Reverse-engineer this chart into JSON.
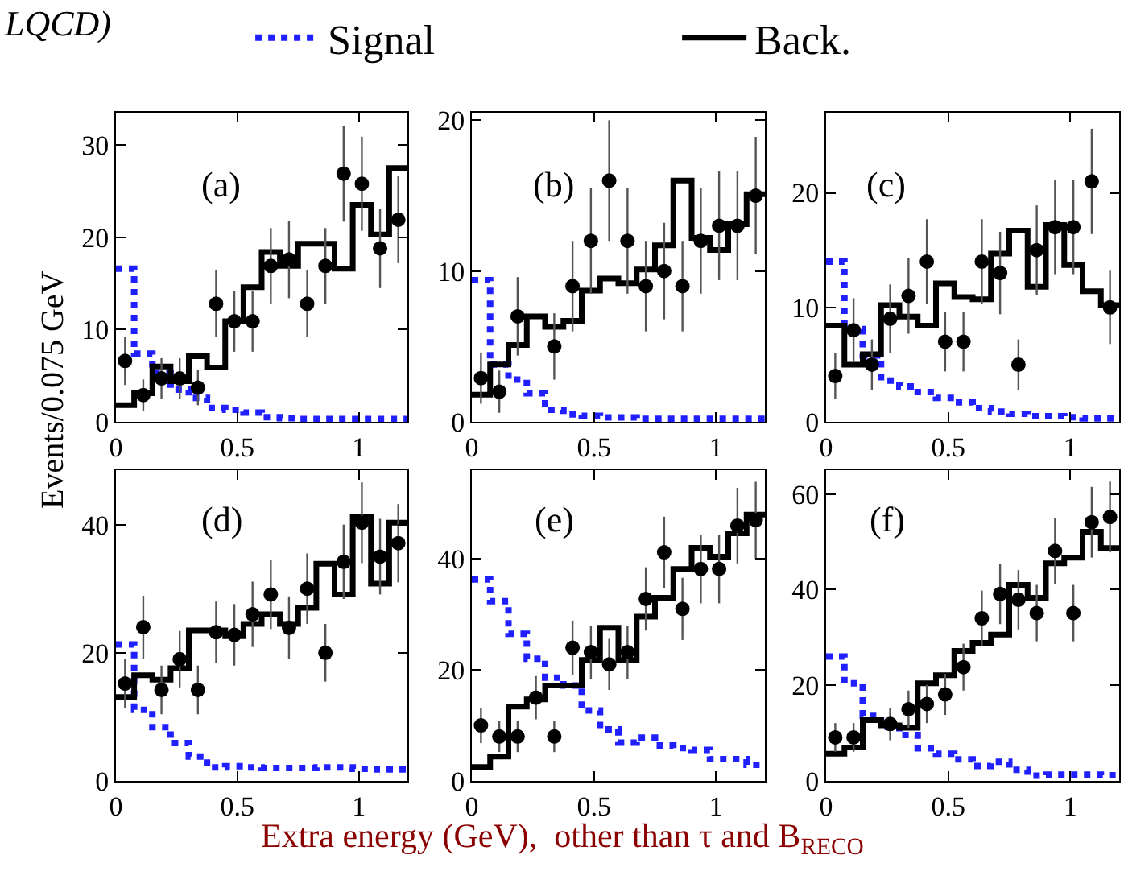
{
  "chart_data": [
    {
      "type": "step",
      "legend": "top",
      "ylabel": "Events/0.075 GeV",
      "annotations": [
        "LQCD)",
        "(a)"
      ],
      "xlim": [
        0,
        1.2
      ],
      "xticks": [
        0,
        0.5,
        1
      ],
      "ylim": [
        0,
        33.5
      ],
      "yticks": [
        0,
        10,
        20,
        30
      ],
      "x": [
        0,
        0.075,
        0.15,
        0.225,
        0.3,
        0.375,
        0.45,
        0.525,
        0.6,
        0.675,
        0.75,
        0.825,
        0.9,
        0.975,
        1.05,
        1.125,
        1.2
      ],
      "series": [
        {
          "name": "Signal",
          "line_style": "dotted",
          "color": "#1f1fff",
          "values": [
            16.6,
            7.4,
            5.3,
            3.5,
            2.6,
            1.5,
            1.3,
            1.0,
            0.5,
            0.4,
            0.3,
            0.3,
            0.3,
            0.3,
            0.3,
            0.3,
            0.3
          ]
        },
        {
          "name": "Back.",
          "line_style": "solid",
          "color": "#000000",
          "values": [
            1.8,
            3.1,
            6.0,
            4.4,
            7.1,
            5.9,
            10.9,
            14.6,
            18.4,
            16.9,
            19.3,
            19.3,
            16.6,
            23.5,
            20.3,
            27.5,
            27.5
          ]
        },
        {
          "type": "scatter",
          "marker": "circle",
          "color": "#000000",
          "x": [
            0.0375,
            0.1125,
            0.1875,
            0.2625,
            0.3375,
            0.4125,
            0.4875,
            0.5625,
            0.6375,
            0.7125,
            0.7875,
            0.8625,
            0.9375,
            1.0125,
            1.0875,
            1.1625
          ],
          "values": [
            6.6,
            2.9,
            4.7,
            4.7,
            3.7,
            12.8,
            10.9,
            10.9,
            16.9,
            17.6,
            12.8,
            16.9,
            26.9,
            25.8,
            18.8,
            21.9
          ],
          "errors": [
            2.6,
            1.7,
            2.2,
            2.2,
            1.9,
            3.6,
            3.3,
            3.3,
            4.1,
            4.2,
            3.6,
            4.1,
            5.2,
            5.1,
            4.3,
            4.7
          ]
        }
      ]
    },
    {
      "type": "step",
      "annotations": [
        "(b)"
      ],
      "xlim": [
        0,
        1.2
      ],
      "xticks": [
        0,
        0.5,
        1
      ],
      "ylim": [
        0,
        20.5
      ],
      "yticks": [
        0,
        10,
        20
      ],
      "x": [
        0,
        0.075,
        0.15,
        0.225,
        0.3,
        0.375,
        0.45,
        0.525,
        0.6,
        0.675,
        0.75,
        0.825,
        0.9,
        0.975,
        1.05,
        1.125,
        1.2
      ],
      "series": [
        {
          "type": "step",
          "line_style": "dotted",
          "color": "#1f1fff",
          "values": [
            9.4,
            3.8,
            2.8,
            1.9,
            0.8,
            0.5,
            0.4,
            0.3,
            0.3,
            0.2,
            0.2,
            0.2,
            0.2,
            0.2,
            0.2,
            0.2,
            0.2
          ]
        },
        {
          "type": "step",
          "line_style": "solid",
          "color": "#000000",
          "values": [
            1.8,
            3.8,
            5.1,
            7.0,
            6.3,
            6.7,
            8.7,
            9.5,
            9.2,
            10.1,
            11.7,
            16.0,
            12.2,
            11.4,
            13.1,
            15.1,
            15.1
          ]
        },
        {
          "type": "scatter",
          "marker": "circle",
          "color": "#000000",
          "x": [
            0.0375,
            0.1125,
            0.1875,
            0.2625,
            0.3375,
            0.4125,
            0.4875,
            0.5625,
            0.6375,
            0.7125,
            0.7875,
            0.8625,
            0.9375,
            1.0125,
            1.0875,
            1.1625
          ],
          "values": [
            2.9,
            2.0,
            7.0,
            null,
            5.0,
            9.0,
            12.0,
            16.0,
            12.0,
            9.0,
            10.0,
            9.0,
            12.0,
            13.0,
            13.0,
            15.0
          ],
          "errors": [
            1.7,
            1.4,
            2.6,
            null,
            2.2,
            3.0,
            3.5,
            4.0,
            3.5,
            3.0,
            3.2,
            3.0,
            3.5,
            3.6,
            3.6,
            3.9
          ]
        }
      ]
    },
    {
      "type": "step",
      "annotations": [
        "(c)"
      ],
      "xlim": [
        0,
        1.2
      ],
      "xticks": [
        0,
        0.5,
        1
      ],
      "ylim": [
        0,
        27
      ],
      "yticks": [
        0,
        10,
        20
      ],
      "x": [
        0,
        0.075,
        0.15,
        0.225,
        0.3,
        0.375,
        0.45,
        0.525,
        0.6,
        0.675,
        0.75,
        0.825,
        0.9,
        0.975,
        1.05,
        1.125,
        1.2
      ],
      "series": [
        {
          "type": "step",
          "line_style": "dotted",
          "color": "#1f1fff",
          "values": [
            14.0,
            8.1,
            5.8,
            3.6,
            3.1,
            2.6,
            2.1,
            1.7,
            1.2,
            0.9,
            0.7,
            0.5,
            0.5,
            0.4,
            0.3,
            0.3,
            0.3
          ]
        },
        {
          "type": "step",
          "line_style": "solid",
          "color": "#000000",
          "values": [
            8.4,
            5.0,
            5.9,
            10.2,
            9.2,
            8.4,
            12.1,
            10.9,
            10.7,
            14.7,
            16.7,
            11.8,
            17.2,
            13.7,
            11.4,
            10.2,
            10.2
          ]
        },
        {
          "type": "scatter",
          "marker": "circle",
          "color": "#000000",
          "x": [
            0.0375,
            0.1125,
            0.1875,
            0.2625,
            0.3375,
            0.4125,
            0.4875,
            0.5625,
            0.6375,
            0.7125,
            0.7875,
            0.8625,
            0.9375,
            1.0125,
            1.0875,
            1.1625
          ],
          "values": [
            4.0,
            8.0,
            5.0,
            9.0,
            11.0,
            14.0,
            7.0,
            7.0,
            14.0,
            13.0,
            5.0,
            15.0,
            17.0,
            17.0,
            21.0,
            10.0
          ],
          "errors": [
            2.0,
            2.8,
            2.2,
            3.0,
            3.3,
            3.7,
            2.6,
            2.6,
            3.7,
            3.6,
            2.2,
            3.9,
            4.1,
            4.1,
            4.6,
            3.2
          ]
        }
      ]
    },
    {
      "type": "step",
      "annotations": [
        "(d)"
      ],
      "xlim": [
        0,
        1.2
      ],
      "xticks": [
        0,
        0.5,
        1
      ],
      "ylim": [
        0,
        48.5
      ],
      "yticks": [
        0,
        20,
        40
      ],
      "x": [
        0,
        0.075,
        0.15,
        0.225,
        0.3,
        0.375,
        0.45,
        0.525,
        0.6,
        0.675,
        0.75,
        0.825,
        0.9,
        0.975,
        1.05,
        1.125,
        1.2
      ],
      "series": [
        {
          "type": "step",
          "line_style": "dotted",
          "color": "#1f1fff",
          "values": [
            21.3,
            11.1,
            8.4,
            5.9,
            3.8,
            2.1,
            2.3,
            2.1,
            2.0,
            2.0,
            2.0,
            2.1,
            2.1,
            1.9,
            1.8,
            1.8,
            1.8
          ]
        },
        {
          "type": "step",
          "line_style": "solid",
          "color": "#000000",
          "values": [
            13.1,
            16.5,
            15.8,
            17.6,
            23.5,
            23.5,
            22.6,
            24.5,
            26.0,
            24.5,
            27.0,
            33.9,
            29.1,
            41.2,
            30.8,
            40.3,
            40.3
          ]
        },
        {
          "type": "scatter",
          "marker": "circle",
          "color": "#000000",
          "x": [
            0.0375,
            0.1125,
            0.1875,
            0.2625,
            0.3375,
            0.4125,
            0.4875,
            0.5625,
            0.6375,
            0.7125,
            0.7875,
            0.8625,
            0.9375,
            1.0125,
            1.0875,
            1.1625
          ],
          "values": [
            15.2,
            24.0,
            14.2,
            19.0,
            14.2,
            23.2,
            22.8,
            26.0,
            29.1,
            23.9,
            30.0,
            20.0,
            34.2,
            40.3,
            35.0,
            37.1
          ],
          "errors": [
            3.9,
            4.9,
            3.8,
            4.4,
            3.8,
            4.8,
            4.8,
            5.1,
            5.4,
            4.9,
            5.5,
            4.5,
            5.8,
            6.3,
            5.9,
            6.1
          ]
        }
      ]
    },
    {
      "type": "step",
      "annotations": [
        "(e)"
      ],
      "xlabel": "Extra energy (GeV),  other than τ and B$_{RECO}$",
      "xlim": [
        0,
        1.2
      ],
      "xticks": [
        0,
        0.5,
        1
      ],
      "ylim": [
        0,
        56
      ],
      "yticks": [
        0,
        20,
        40
      ],
      "x": [
        0,
        0.075,
        0.15,
        0.225,
        0.3,
        0.375,
        0.45,
        0.525,
        0.6,
        0.675,
        0.75,
        0.825,
        0.9,
        0.975,
        1.05,
        1.125,
        1.2
      ],
      "series": [
        {
          "type": "step",
          "line_style": "dotted",
          "color": "#1f1fff",
          "values": [
            36.3,
            32.4,
            26.5,
            22.0,
            18.6,
            17.2,
            12.7,
            9.3,
            6.9,
            7.8,
            6.4,
            5.9,
            5.6,
            3.9,
            3.9,
            2.9,
            2.9
          ]
        },
        {
          "type": "step",
          "line_style": "solid",
          "color": "#000000",
          "values": [
            2.5,
            4.4,
            13.4,
            14.7,
            17.2,
            17.2,
            21.8,
            27.6,
            21.8,
            29.6,
            33.0,
            38.2,
            42.0,
            40.4,
            44.6,
            48.0,
            48.0
          ]
        },
        {
          "type": "scatter",
          "marker": "circle",
          "color": "#000000",
          "x": [
            0.0375,
            0.1125,
            0.1875,
            0.2625,
            0.3375,
            0.4125,
            0.4875,
            0.5625,
            0.6375,
            0.7125,
            0.7875,
            0.8625,
            0.9375,
            1.0125,
            1.0875,
            1.1625
          ],
          "values": [
            10.0,
            8.0,
            8.0,
            15.0,
            8.0,
            24.0,
            23.2,
            21.0,
            23.2,
            32.8,
            41.2,
            31.0,
            38.2,
            38.2,
            46.0,
            47.0
          ],
          "errors": [
            3.2,
            2.8,
            2.8,
            3.9,
            2.8,
            4.9,
            4.8,
            4.6,
            4.8,
            5.7,
            6.4,
            5.6,
            6.2,
            6.2,
            6.8,
            6.9
          ]
        }
      ]
    },
    {
      "type": "step",
      "annotations": [
        "(f)"
      ],
      "xlim": [
        0,
        1.2
      ],
      "xticks": [
        0,
        0.5,
        1
      ],
      "ylim": [
        0,
        65
      ],
      "yticks": [
        0,
        20,
        40,
        60
      ],
      "x": [
        0,
        0.075,
        0.15,
        0.225,
        0.3,
        0.375,
        0.45,
        0.525,
        0.6,
        0.675,
        0.75,
        0.825,
        0.9,
        0.975,
        1.05,
        1.125,
        1.2
      ],
      "series": [
        {
          "type": "step",
          "line_style": "dotted",
          "color": "#1f1fff",
          "values": [
            26.0,
            20.4,
            13.6,
            11.3,
            9.6,
            6.8,
            5.7,
            4.5,
            3.1,
            4.0,
            2.3,
            1.1,
            1.3,
            1.3,
            1.3,
            1.2,
            1.2
          ]
        },
        {
          "type": "step",
          "line_style": "solid",
          "color": "#000000",
          "values": [
            5.7,
            7.0,
            12.7,
            11.6,
            11.1,
            20.4,
            22.1,
            27.2,
            28.9,
            30.6,
            41.0,
            38.3,
            45.5,
            46.7,
            52.1,
            48.7,
            48.7
          ]
        },
        {
          "type": "scatter",
          "marker": "circle",
          "color": "#000000",
          "x": [
            0.0375,
            0.1125,
            0.1875,
            0.2625,
            0.3375,
            0.4125,
            0.4875,
            0.5625,
            0.6375,
            0.7125,
            0.7875,
            0.8625,
            0.9375,
            1.0125,
            1.0875,
            1.1625
          ],
          "values": [
            9.1,
            9.1,
            null,
            11.9,
            15.0,
            16.1,
            18.1,
            23.8,
            34.0,
            39.1,
            37.9,
            35.1,
            48.1,
            35.1,
            54.1,
            55.2
          ],
          "errors": [
            3.0,
            3.0,
            null,
            3.4,
            3.9,
            4.0,
            4.3,
            4.9,
            5.8,
            6.3,
            6.2,
            5.9,
            6.9,
            5.9,
            7.4,
            7.4
          ]
        }
      ]
    }
  ]
}
